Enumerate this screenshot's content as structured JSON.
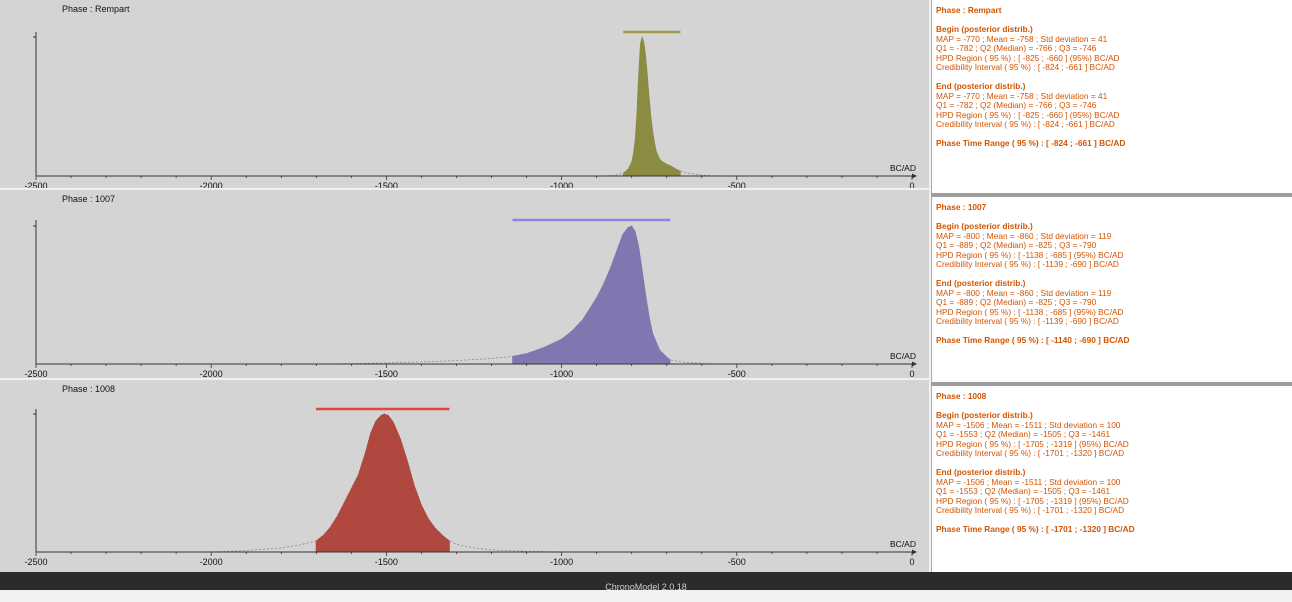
{
  "chart_data": [
    {
      "type": "area",
      "title": "Phase : Rempart",
      "xlabel": "BC/AD",
      "xlim": [
        -2500,
        0
      ],
      "xticks": [
        -2500,
        -2000,
        -1500,
        -1000,
        -500,
        0
      ],
      "color": "#8b8b42",
      "bar_color": "#a09a45",
      "range_bar": [
        -824,
        -661
      ],
      "series": [
        {
          "x": [
            -880,
            -860,
            -840,
            -824,
            -810,
            -800,
            -795,
            -790,
            -785,
            -780,
            -775,
            -770,
            -765,
            -760,
            -755,
            -750,
            -745,
            -740,
            -735,
            -730,
            -720,
            -710,
            -700,
            -690,
            -680,
            -670,
            -661,
            -640,
            -600,
            -560
          ],
          "y": [
            0,
            0.003,
            0.01,
            0.02,
            0.05,
            0.1,
            0.16,
            0.26,
            0.45,
            0.74,
            0.95,
            1.0,
            0.96,
            0.86,
            0.72,
            0.56,
            0.42,
            0.32,
            0.24,
            0.18,
            0.12,
            0.1,
            0.085,
            0.075,
            0.06,
            0.045,
            0.035,
            0.02,
            0.006,
            0
          ]
        }
      ]
    },
    {
      "type": "area",
      "title": "Phase : 1007",
      "xlabel": "BC/AD",
      "xlim": [
        -2500,
        0
      ],
      "xticks": [
        -2500,
        -2000,
        -1500,
        -1000,
        -500,
        0
      ],
      "color": "#7f77af",
      "bar_color": "#8c85df",
      "range_bar": [
        -1140,
        -690
      ],
      "series": [
        {
          "x": [
            -1700,
            -1600,
            -1500,
            -1400,
            -1300,
            -1200,
            -1140,
            -1100,
            -1050,
            -1000,
            -970,
            -940,
            -920,
            -900,
            -880,
            -860,
            -840,
            -825,
            -810,
            -800,
            -790,
            -780,
            -770,
            -760,
            -750,
            -740,
            -720,
            -700,
            -690,
            -650,
            -600,
            -560
          ],
          "y": [
            0,
            0.003,
            0.008,
            0.015,
            0.025,
            0.04,
            0.055,
            0.075,
            0.12,
            0.18,
            0.24,
            0.32,
            0.4,
            0.48,
            0.58,
            0.7,
            0.84,
            0.94,
            0.99,
            1.0,
            0.96,
            0.85,
            0.68,
            0.5,
            0.34,
            0.22,
            0.1,
            0.05,
            0.03,
            0.012,
            0.004,
            0
          ]
        }
      ]
    },
    {
      "type": "area",
      "title": "Phase : 1008",
      "xlabel": "BC/AD",
      "xlim": [
        -2500,
        0
      ],
      "xticks": [
        -2500,
        -2000,
        -1500,
        -1000,
        -500,
        0
      ],
      "color": "#b04840",
      "bar_color": "#e0463d",
      "range_bar": [
        -1701,
        -1320
      ],
      "series": [
        {
          "x": [
            -2000,
            -1900,
            -1800,
            -1750,
            -1701,
            -1680,
            -1660,
            -1640,
            -1620,
            -1600,
            -1580,
            -1560,
            -1545,
            -1530,
            -1515,
            -1506,
            -1495,
            -1480,
            -1460,
            -1440,
            -1420,
            -1400,
            -1380,
            -1360,
            -1340,
            -1320,
            -1300,
            -1250,
            -1200,
            -1100,
            -1000
          ],
          "y": [
            0,
            0.01,
            0.03,
            0.05,
            0.08,
            0.12,
            0.18,
            0.26,
            0.36,
            0.46,
            0.56,
            0.72,
            0.86,
            0.95,
            0.99,
            1.0,
            0.99,
            0.94,
            0.82,
            0.66,
            0.48,
            0.34,
            0.24,
            0.17,
            0.12,
            0.08,
            0.055,
            0.03,
            0.015,
            0.005,
            0
          ]
        }
      ]
    }
  ],
  "stats": [
    {
      "title": "Phase : Rempart",
      "begin_heading": "Begin (posterior distrib.)",
      "begin_lines": [
        "MAP = -770 ; Mean = -758 ; Std deviation = 41",
        "Q1 = -782 ; Q2 (Median) = -766 ; Q3 = -746",
        "HPD Region ( 95 %) : [ -825 ; -660 ] (95%) BC/AD",
        "Credibility Interval ( 95 %) : [ -824 ; -661 ] BC/AD"
      ],
      "end_heading": "End (posterior distrib.)",
      "end_lines": [
        "MAP = -770 ; Mean = -758 ; Std deviation = 41",
        "Q1 = -782 ; Q2 (Median) = -766 ; Q3 = -746",
        "HPD Region ( 95 %) : [ -825 ; -660 ] (95%) BC/AD",
        "Credibility Interval ( 95 %) : [ -824 ; -661 ] BC/AD"
      ],
      "time_range": "Phase Time Range ( 95 %) : [ -824 ; -661 ] BC/AD"
    },
    {
      "title": "Phase : 1007",
      "begin_heading": "Begin (posterior distrib.)",
      "begin_lines": [
        "MAP = -800 ; Mean = -860 ; Std deviation = 119",
        "Q1 = -889 ; Q2 (Median) = -825 ; Q3 = -790",
        "HPD Region ( 95 %) : [ -1138 ; -685 ] (95%) BC/AD",
        "Credibility Interval ( 95 %) : [ -1139 ; -690 ] BC/AD"
      ],
      "end_heading": "End (posterior distrib.)",
      "end_lines": [
        "MAP = -800 ; Mean = -860 ; Std deviation = 119",
        "Q1 = -889 ; Q2 (Median) = -825 ; Q3 = -790",
        "HPD Region ( 95 %) : [ -1138 ; -685 ] (95%) BC/AD",
        "Credibility Interval ( 95 %) : [ -1139 ; -690 ] BC/AD"
      ],
      "time_range": "Phase Time Range ( 95 %) : [ -1140 ; -690 ] BC/AD"
    },
    {
      "title": "Phase : 1008",
      "begin_heading": "Begin (posterior distrib.)",
      "begin_lines": [
        "MAP = -1506 ; Mean = -1511 ; Std deviation = 100",
        "Q1 = -1553 ; Q2 (Median) = -1505 ; Q3 = -1461",
        "HPD Region ( 95 %) : [ -1705 ; -1319 ] (95%) BC/AD",
        "Credibility Interval ( 95 %) : [ -1701 ; -1320 ] BC/AD"
      ],
      "end_heading": "End (posterior distrib.)",
      "end_lines": [
        "MAP = -1506 ; Mean = -1511 ; Std deviation = 100",
        "Q1 = -1553 ; Q2 (Median) = -1505 ; Q3 = -1461",
        "HPD Region ( 95 %) : [ -1705 ; -1319 ] (95%) BC/AD",
        "Credibility Interval ( 95 %) : [ -1701 ; -1320 ] BC/AD"
      ],
      "time_range": "Phase Time Range ( 95 %) : [ -1701 ; -1320 ] BC/AD"
    }
  ],
  "footer": {
    "text": "ChronoModel 2.0.18"
  }
}
